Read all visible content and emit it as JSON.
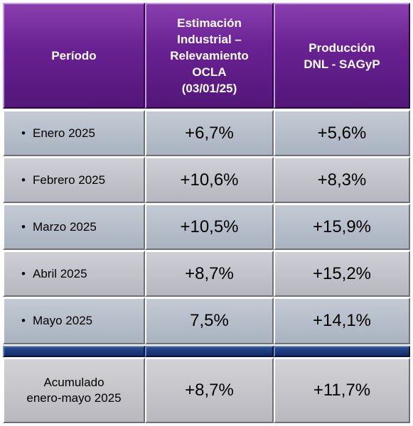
{
  "headers": {
    "period": "Período",
    "estimacion": [
      "Estimación",
      "Industrial –",
      "Relevamiento",
      "OCLA",
      "(03/01/25)"
    ],
    "produccion": [
      "Producción",
      "DNL - SAGyP"
    ]
  },
  "rows": [
    {
      "period": "Enero 2025",
      "estimacion": "+6,7%",
      "produccion": "+5,6%"
    },
    {
      "period": "Febrero 2025",
      "estimacion": "+10,6%",
      "produccion": "+8,3%"
    },
    {
      "period": "Marzo 2025",
      "estimacion": "+10,5%",
      "produccion": "+15,9%"
    },
    {
      "period": "Abril 2025",
      "estimacion": "+8,7%",
      "produccion": "+15,2%"
    },
    {
      "period": "Mayo 2025",
      "estimacion": "7,5%",
      "produccion": "+14,1%"
    }
  ],
  "bullet": "•",
  "total": {
    "period": [
      "Acumulado",
      "enero-mayo 2025"
    ],
    "estimacion": "+8,7%",
    "produccion": "+11,7%"
  },
  "colors": {
    "header": "#6a2293",
    "separator": "#1b3577",
    "row": "#b9c1cc"
  }
}
